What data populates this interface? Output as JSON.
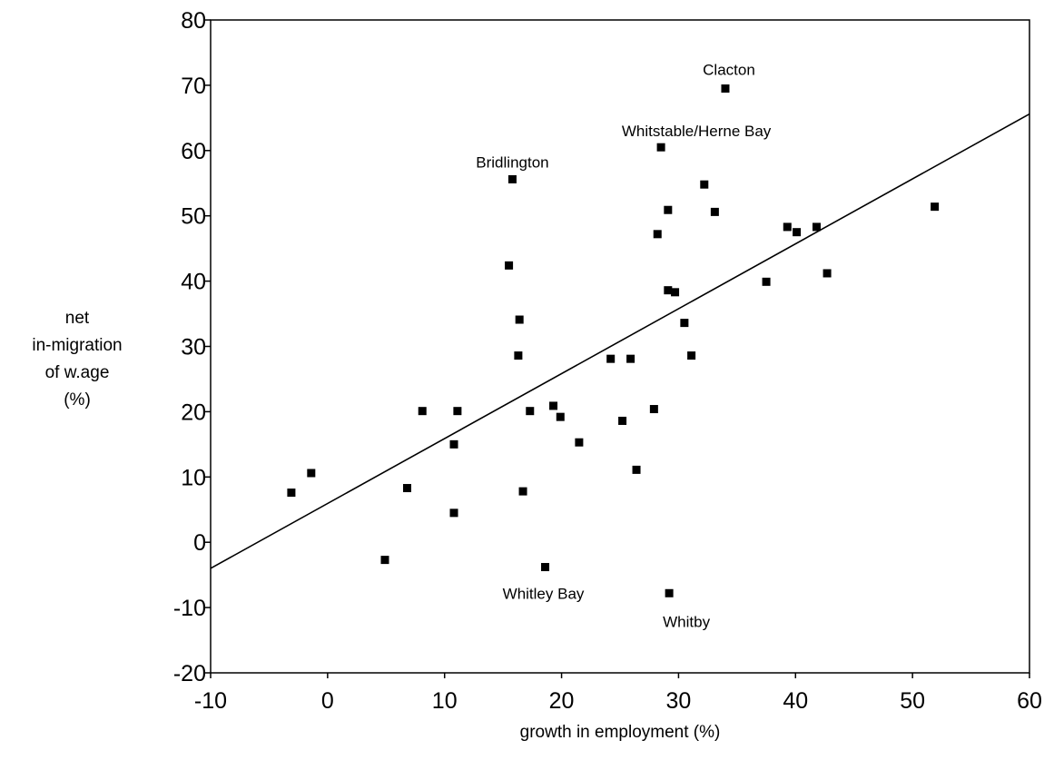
{
  "chart_data": {
    "type": "scatter",
    "title": "",
    "xlabel": "growth in employment (%)",
    "ylabel": [
      "net",
      "in-migration",
      "of w.age",
      "(%)"
    ],
    "xlim": [
      -10,
      60
    ],
    "ylim": [
      -20,
      80
    ],
    "xticks": [
      -10,
      0,
      10,
      20,
      30,
      40,
      50,
      60
    ],
    "yticks": [
      -20,
      -10,
      0,
      10,
      20,
      30,
      40,
      50,
      60,
      70,
      80
    ],
    "grid": false,
    "marker": "square",
    "color": "#000000",
    "points": [
      {
        "x": 34.0,
        "y": 69.5
      },
      {
        "x": 28.5,
        "y": 60.5
      },
      {
        "x": 15.8,
        "y": 55.6
      },
      {
        "x": 32.2,
        "y": 54.8
      },
      {
        "x": 29.1,
        "y": 50.9
      },
      {
        "x": 33.1,
        "y": 50.6
      },
      {
        "x": 51.9,
        "y": 51.4
      },
      {
        "x": 39.3,
        "y": 48.3
      },
      {
        "x": 41.8,
        "y": 48.3
      },
      {
        "x": 40.1,
        "y": 47.5
      },
      {
        "x": 28.2,
        "y": 47.2
      },
      {
        "x": 15.5,
        "y": 42.4
      },
      {
        "x": 42.7,
        "y": 41.2
      },
      {
        "x": 37.5,
        "y": 39.9
      },
      {
        "x": 29.1,
        "y": 38.6
      },
      {
        "x": 29.7,
        "y": 38.3
      },
      {
        "x": 16.4,
        "y": 34.1
      },
      {
        "x": 30.5,
        "y": 33.6
      },
      {
        "x": 16.3,
        "y": 28.6
      },
      {
        "x": 31.1,
        "y": 28.6
      },
      {
        "x": 24.2,
        "y": 28.1
      },
      {
        "x": 25.9,
        "y": 28.1
      },
      {
        "x": 19.3,
        "y": 20.9
      },
      {
        "x": 8.1,
        "y": 20.1
      },
      {
        "x": 11.1,
        "y": 20.1
      },
      {
        "x": 17.3,
        "y": 20.1
      },
      {
        "x": 27.9,
        "y": 20.4
      },
      {
        "x": 19.9,
        "y": 19.2
      },
      {
        "x": 25.2,
        "y": 18.6
      },
      {
        "x": 21.5,
        "y": 15.3
      },
      {
        "x": 10.8,
        "y": 15.0
      },
      {
        "x": 26.4,
        "y": 11.1
      },
      {
        "x": -1.4,
        "y": 10.6
      },
      {
        "x": 6.8,
        "y": 8.3
      },
      {
        "x": 16.7,
        "y": 7.8
      },
      {
        "x": -3.1,
        "y": 7.6
      },
      {
        "x": 10.8,
        "y": 4.5
      },
      {
        "x": 4.9,
        "y": -2.7
      },
      {
        "x": 18.6,
        "y": -3.8
      },
      {
        "x": 29.2,
        "y": -7.8
      }
    ],
    "annotations": [
      {
        "text": "Clacton",
        "x": 34.0,
        "y": 69.5
      },
      {
        "text": "Whitstable/Herne Bay",
        "x": 28.5,
        "y": 60.5
      },
      {
        "text": "Bridlington",
        "x": 15.8,
        "y": 55.6
      },
      {
        "text": "Whitley Bay",
        "x": 18.6,
        "y": -3.8
      },
      {
        "text": "Whitby",
        "x": 29.2,
        "y": -7.8
      }
    ],
    "regression_line": {
      "x": [
        -10,
        60
      ],
      "y": [
        -4.0,
        65.6
      ]
    }
  }
}
